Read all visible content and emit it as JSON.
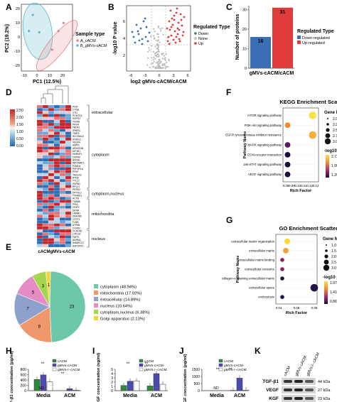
{
  "panels": {
    "A": {
      "letter": "A",
      "xlabel": "PC1 (12.5%)",
      "ylabel": "PC2 (19.2%)",
      "legend_title": "Sample type",
      "legend": [
        "A_cACM",
        "B_gMVs-cACM"
      ],
      "colors": [
        "#e8828a",
        "#5bb9c9"
      ],
      "xticks": [
        "-10",
        "0",
        "10",
        "20"
      ],
      "yticks": [
        "-20",
        "-10",
        "0",
        "10",
        "20"
      ],
      "points": [
        {
          "g": 0,
          "x": 9,
          "y": -9
        },
        {
          "g": 0,
          "x": 14,
          "y": 5
        },
        {
          "g": 0,
          "x": 18,
          "y": 11
        },
        {
          "g": 1,
          "x": -6,
          "y": 17
        },
        {
          "g": 1,
          "x": -9,
          "y": 5
        },
        {
          "g": 1,
          "x": -1,
          "y": 4
        }
      ]
    },
    "B": {
      "letter": "B",
      "xlabel": "log2 gMVs-cACM/cACM",
      "ylabel": "-log10 P value",
      "legend_title": "Regulated Type",
      "legend": [
        "Down",
        "None",
        "Up"
      ],
      "colors": [
        "#3a6fb5",
        "#b9b9b9",
        "#e03a3a"
      ],
      "xticks": [
        "-6",
        "-3",
        "0",
        "3",
        "6"
      ],
      "yticks": [
        "2",
        "4",
        "6"
      ]
    },
    "C": {
      "letter": "C",
      "ylabel": "Number of proteins",
      "xlabel": "gMVs-cACM/cACM",
      "legend_title": "Regulated Type",
      "legend": [
        "Down-regulated",
        "Up-regulated"
      ],
      "colors": [
        "#3a6fb5",
        "#e03a3a"
      ],
      "yticks": [
        "0",
        "10",
        "20",
        "30"
      ],
      "values": [
        16,
        31
      ]
    },
    "D": {
      "letter": "D",
      "scale": [
        "2.50",
        "2.00",
        "1.50",
        "1.00",
        "0.50",
        "0.00"
      ],
      "columns": [
        "cACM",
        "gMVs-cACM"
      ],
      "groups": [
        "extracellular",
        "cytoplasm",
        "cytoplasm,nucleus",
        "mitochondria",
        "nucleus"
      ],
      "genes": [
        "PIGF",
        "CTSB",
        "VTN",
        "PCMTD1",
        "HSPG2",
        "TGFB1",
        "PRG4",
        "FBLN1",
        "SPARC",
        "TIMP2",
        "SLC25A12",
        "SH3GL1",
        "VEGFA",
        "AIMP1",
        "ARHGDIB",
        "KIF1B1",
        "HNRNPL",
        "CAPN2",
        "ANXA1",
        "NIPSNAP1",
        "PSMD4",
        "PPP2R1A",
        "PFKP",
        "TAGLN2",
        "RTN4",
        "TTL12",
        "HSPB1",
        "RPL21",
        "PRSS2",
        "DPYSL3",
        "TXNRD1",
        "ACTB",
        "TUBB6",
        "PPIA",
        "CRIP2",
        "DENR",
        "LMNB1",
        "DNAJB6",
        "CSTF1",
        "FLNB",
        "ATP5B",
        "COX6C",
        "CCDC50",
        "LYPLA1",
        "FDPS",
        "ADRM1",
        "SMARCC2",
        "ASPSCR1"
      ]
    },
    "E": {
      "letter": "E",
      "slices": [
        {
          "label": "cytoplasm (48.94%)",
          "value": 23,
          "color": "#6cc8a8"
        },
        {
          "label": "mitochondria (17.02%)",
          "value": 8,
          "color": "#f0976b"
        },
        {
          "label": "extracellular (14.89%)",
          "value": 7,
          "color": "#8ea0cc"
        },
        {
          "label": "nucleus (10.64%)",
          "value": 5,
          "color": "#e58cc4"
        },
        {
          "label": "cytoplasm,nucleus (6.38%)",
          "value": 3,
          "color": "#a6d64f"
        },
        {
          "label": "Golgi apparatus (2.13%)",
          "value": 1,
          "color": "#f5d437"
        }
      ]
    },
    "F": {
      "letter": "F",
      "title": "KEGG Enrichment Scatter Plot",
      "xlabel": "Rich Factor",
      "ylabel": "Pathway Name",
      "terms": [
        "mTOR signaling pathway",
        "PI3K-Akt signaling pathway",
        "EGFR tyrosine kinase inhibitor resistance",
        "MAPK signaling pathway",
        "ECM-receptor interaction",
        "Jak-STAT signaling pathway",
        "VEGF signaling pathway"
      ],
      "xticks": [
        "0.08",
        "0.09",
        "0.10",
        "0.11",
        "0.12",
        "0.13"
      ],
      "size_title": "Gene Number",
      "size_levels": [
        "2.00",
        "2.25",
        "2.50",
        "2.75",
        "3.00"
      ],
      "color_title": "-log10 p Value",
      "color_levels": [
        "2.7300",
        "1.9950",
        "1.2600"
      ],
      "points": [
        {
          "x": 0.125,
          "g": 3,
          "c": 0.92
        },
        {
          "x": 0.083,
          "g": 2,
          "c": 0.5
        },
        {
          "x": 0.125,
          "g": 3,
          "c": 0.8
        },
        {
          "x": 0.083,
          "g": 2,
          "c": 0.3
        },
        {
          "x": 0.083,
          "g": 2,
          "c": 0.15
        },
        {
          "x": 0.083,
          "g": 2,
          "c": 0.1
        },
        {
          "x": 0.083,
          "g": 2,
          "c": 0.1
        }
      ]
    },
    "G": {
      "letter": "G",
      "title": "GO Enrichment Scatter Plot",
      "xlabel": "Rich Factor",
      "ylabel": "Pathway Name",
      "terms": [
        "extracellular matrix organization",
        "extracellular matrix",
        "extracellular matrix binding",
        "extracellular exosome",
        "collagen-containing extracellular matrix",
        "extracellular space",
        "endocytosis"
      ],
      "xticks": [
        "0.04",
        "0.06",
        "0.08"
      ],
      "size_title": "Gene Number",
      "size_levels": [
        "1.0",
        "1.5",
        "2.0",
        "2.5",
        "3.0"
      ],
      "color_title": "-log10 p Value",
      "color_levels": [
        "1.9785",
        "1.4193",
        "0.8602"
      ],
      "points": [
        {
          "x": 0.052,
          "g": 2,
          "c": 0.9
        },
        {
          "x": 0.05,
          "g": 2,
          "c": 0.7
        },
        {
          "x": 0.045,
          "g": 1,
          "c": 0.4
        },
        {
          "x": 0.045,
          "g": 1,
          "c": 0.3
        },
        {
          "x": 0.045,
          "g": 1,
          "c": 0.25
        },
        {
          "x": 0.09,
          "g": 3,
          "c": 0.05
        },
        {
          "x": 0.045,
          "g": 1,
          "c": 0.2
        }
      ]
    },
    "H": {
      "letter": "H",
      "ylabel": "TGF-β1 concentration (pg/ml)",
      "categories": [
        "Media",
        "ACM"
      ],
      "legend": [
        "cACM",
        "gMVs-cACM",
        "gMVs-/--cACM"
      ],
      "yticks": [
        "0",
        "200",
        "400",
        "600",
        "800"
      ],
      "values": [
        [
          420,
          590,
          330
        ],
        [
          0,
          70,
          20
        ]
      ],
      "nd": "ND"
    },
    "I": {
      "letter": "I",
      "ylabel": "VEGF concentration (ng/ml)",
      "categories": [
        "Media",
        "ACM"
      ],
      "legend": [
        "cACM",
        "gMVs-cACM",
        "gMVs-/--cACM"
      ],
      "yticks": [
        "0",
        "1",
        "2",
        "3",
        "4",
        "5"
      ],
      "values": [
        [
          1.2,
          2.2,
          2.3
        ],
        [
          1.1,
          4.0,
          1.5
        ]
      ]
    },
    "J": {
      "letter": "J",
      "ylabel": "KGF concentration (pg/ml)",
      "categories": [
        "Media",
        "ACM"
      ],
      "legend": [
        "cACM",
        "gMVs-cACM",
        "gMVs-/--cACM"
      ],
      "yticks": [
        "0",
        "500",
        "1000",
        "1500"
      ],
      "values": [
        [
          0,
          0,
          0
        ],
        [
          20,
          880,
          40
        ]
      ],
      "nd": "ND"
    },
    "K": {
      "letter": "K",
      "lanes": [
        "cACM",
        "gMVs-cACM",
        "gMVs-/--cACM"
      ],
      "rows": [
        {
          "name": "TGF-β1",
          "kda": "44 kDa"
        },
        {
          "name": "VEGF",
          "kda": "27 kDa"
        },
        {
          "name": "KGF",
          "kda": "23 kDa"
        }
      ]
    }
  },
  "chart_data": [
    {
      "type": "scatter",
      "panel": "A",
      "xlabel": "PC1 (12.5%)",
      "ylabel": "PC2 (19.2%)",
      "series": [
        {
          "name": "A_cACM",
          "x": [
            9,
            14,
            18
          ],
          "y": [
            -9,
            5,
            11
          ]
        },
        {
          "name": "B_gMVs-cACM",
          "x": [
            -6,
            -9,
            -1
          ],
          "y": [
            17,
            5,
            4
          ]
        }
      ]
    },
    {
      "type": "scatter",
      "panel": "B",
      "xlabel": "log2 gMVs-cACM/cACM",
      "ylabel": "-log10 P value",
      "series": [
        {
          "name": "Down"
        },
        {
          "name": "None"
        },
        {
          "name": "Up"
        }
      ]
    },
    {
      "type": "bar",
      "panel": "C",
      "categories": [
        "Down-regulated",
        "Up-regulated"
      ],
      "values": [
        16,
        31
      ],
      "ylabel": "Number of proteins",
      "xlabel": "gMVs-cACM/cACM",
      "ylim": [
        0,
        32
      ]
    },
    {
      "type": "heatmap",
      "panel": "D",
      "columns": [
        "cACM",
        "gMVs-cACM"
      ]
    },
    {
      "type": "pie",
      "panel": "E",
      "categories": [
        "cytoplasm",
        "mitochondria",
        "extracellular",
        "nucleus",
        "cytoplasm,nucleus",
        "Golgi apparatus"
      ],
      "values": [
        23,
        8,
        7,
        5,
        3,
        1
      ]
    },
    {
      "type": "scatter",
      "panel": "F",
      "title": "KEGG Enrichment Scatter Plot",
      "xlabel": "Rich Factor",
      "ylabel": "Pathway Name"
    },
    {
      "type": "scatter",
      "panel": "G",
      "title": "GO Enrichment Scatter Plot",
      "xlabel": "Rich Factor",
      "ylabel": "Pathway Name"
    },
    {
      "type": "bar",
      "panel": "H",
      "categories": [
        "Media",
        "ACM"
      ],
      "series": [
        {
          "name": "cACM",
          "values": [
            420,
            0
          ]
        },
        {
          "name": "gMVs-cACM",
          "values": [
            590,
            70
          ]
        },
        {
          "name": "gMVs-/--cACM",
          "values": [
            330,
            20
          ]
        }
      ],
      "ylabel": "TGF-β1 concentration (pg/ml)",
      "ylim": [
        0,
        800
      ]
    },
    {
      "type": "bar",
      "panel": "I",
      "categories": [
        "Media",
        "ACM"
      ],
      "series": [
        {
          "name": "cACM",
          "values": [
            1.2,
            1.1
          ]
        },
        {
          "name": "gMVs-cACM",
          "values": [
            2.2,
            4.0
          ]
        },
        {
          "name": "gMVs-/--cACM",
          "values": [
            2.3,
            1.5
          ]
        }
      ],
      "ylabel": "VEGF concentration (ng/ml)",
      "ylim": [
        0,
        5
      ]
    },
    {
      "type": "bar",
      "panel": "J",
      "categories": [
        "Media",
        "ACM"
      ],
      "series": [
        {
          "name": "cACM",
          "values": [
            0,
            20
          ]
        },
        {
          "name": "gMVs-cACM",
          "values": [
            0,
            880
          ]
        },
        {
          "name": "gMVs-/--cACM",
          "values": [
            0,
            40
          ]
        }
      ],
      "ylabel": "KGF concentration (pg/ml)",
      "ylim": [
        0,
        1500
      ]
    }
  ]
}
